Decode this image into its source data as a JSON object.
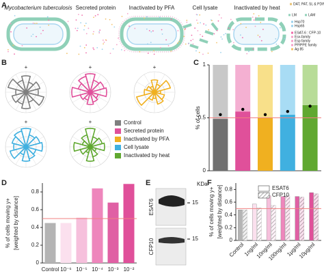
{
  "panel_a": {
    "letter": "A",
    "labels": [
      "Mycobacterium tuberculosis",
      "Secreted protein",
      "Inactivated by PFA",
      "Cell lysate",
      "Inactivated by heat"
    ],
    "legend": [
      "DAT, PAT, SL & PDIM",
      "LM",
      "LAM",
      "Hsp70",
      "Hsp65",
      "ESAT-6 : CFP-10",
      "Esx-family",
      "Esp family",
      "PP/PPE family",
      "Ag 85"
    ]
  },
  "panel_e": {
    "letter": "E",
    "unit": "KDa",
    "markers": [
      "15",
      "15"
    ],
    "blots": [
      "ESAT6",
      "CFP10"
    ]
  },
  "chart_data": [
    {
      "type": "rose",
      "letter": "B",
      "rlim": [
        0,
        1
      ],
      "rticks": [
        0.5,
        1
      ],
      "marker": "+",
      "legend": "right",
      "series": [
        {
          "name": "Control",
          "color": "#7f7f7f",
          "values": [
            0.8,
            0.5,
            0.7,
            0.6,
            0.9,
            0.5,
            0.8,
            0.6,
            0.7,
            0.5,
            0.9,
            0.6
          ]
        },
        {
          "name": "Secreted protein",
          "color": "#e0509a",
          "values": [
            0.9,
            0.6,
            0.7,
            0.8,
            0.4,
            0.5,
            0.6,
            0.4,
            0.5,
            0.9,
            0.6,
            0.8
          ]
        },
        {
          "name": "Inactivated by PFA",
          "color": "#f0b020",
          "values": [
            0.6,
            0.4,
            0.8,
            0.3,
            0.5,
            0.6,
            0.3,
            0.4,
            0.9,
            0.5,
            0.4,
            0.3
          ]
        },
        {
          "name": "Cell lysate",
          "color": "#40b0e0",
          "values": [
            0.9,
            0.6,
            0.7,
            0.8,
            0.5,
            0.6,
            0.7,
            0.4,
            0.8,
            0.6,
            0.7,
            0.8
          ]
        },
        {
          "name": "Inactivated by heat",
          "color": "#60a830",
          "values": [
            0.9,
            0.5,
            0.6,
            0.7,
            0.3,
            0.5,
            0.7,
            0.3,
            0.5,
            0.8,
            0.4,
            0.6
          ]
        }
      ]
    },
    {
      "type": "stacked_bar",
      "letter": "C",
      "ylabel": "% of cells",
      "ylim": [
        0,
        1
      ],
      "yticks": [
        0,
        0.5,
        1
      ],
      "categories": [
        null,
        null,
        null,
        null,
        null
      ],
      "reference_line": 0.5,
      "reference_color": "#f08080",
      "series": [
        {
          "colors": [
            "#707070",
            "#e0509a",
            "#f0b020",
            "#40b0e0",
            "#60a830"
          ],
          "values": [
            0.49,
            0.56,
            0.5,
            0.53,
            0.62
          ]
        },
        {
          "colors": [
            "#c8c8c8",
            "#f4b0d2",
            "#f8e08a",
            "#a8dcf4",
            "#b8dc98"
          ],
          "values": [
            0.51,
            0.44,
            0.5,
            0.47,
            0.38
          ]
        }
      ],
      "points": {
        "color": "#000000",
        "values": [
          0.53,
          0.58,
          0.53,
          0.56,
          0.61
        ]
      }
    },
    {
      "type": "bar",
      "letter": "D",
      "ylabel": [
        "% of cells moving y+",
        "[weighted by distance]"
      ],
      "ylim": [
        0,
        0.9
      ],
      "yticks": [
        0,
        0.2,
        0.4,
        0.6,
        0.8
      ],
      "categories": [
        "Control",
        "10⁻⁶",
        "10⁻⁵",
        "10⁻⁴",
        "10⁻³",
        "10⁻²"
      ],
      "colors": [
        "#b4b4b4",
        "#fbe0ee",
        "#f6c0dc",
        "#ee86bc",
        "#e060a4",
        "#e0509a"
      ],
      "values": [
        0.45,
        0.45,
        0.51,
        0.84,
        0.68,
        0.89
      ],
      "reference_line": 0.5,
      "reference_color": "#f08080"
    },
    {
      "type": "grouped_bar",
      "letter": "F",
      "ylabel": [
        "% of cells moving y+",
        "[weighted by distance]"
      ],
      "ylim": [
        0,
        0.9
      ],
      "yticks": [
        0,
        0.2,
        0.4,
        0.6,
        0.8
      ],
      "categories": [
        "Control",
        "1ng/ml",
        "10ng/ml",
        "100ng/ml",
        "1μg/ml",
        "10μg/ml"
      ],
      "legend": "top",
      "reference_line": 0.5,
      "reference_color": "#f08080",
      "series": [
        {
          "name": "ESAT6",
          "hatch": false,
          "colors": [
            "#b4b4b4",
            "#fbe0ee",
            "#f6c0dc",
            "#ee86bc",
            "#e060a4",
            "#e0509a"
          ],
          "values": [
            0.48,
            0.57,
            0.7,
            0.69,
            0.69,
            0.75
          ]
        },
        {
          "name": "CFP10",
          "hatch": true,
          "colors": [
            "#b4b4b4",
            "#fbe0ee",
            "#f6c0dc",
            "#ee86bc",
            "#e060a4",
            "#e0509a"
          ],
          "values": [
            0.48,
            0.51,
            0.55,
            0.7,
            0.68,
            0.73
          ]
        }
      ]
    }
  ]
}
